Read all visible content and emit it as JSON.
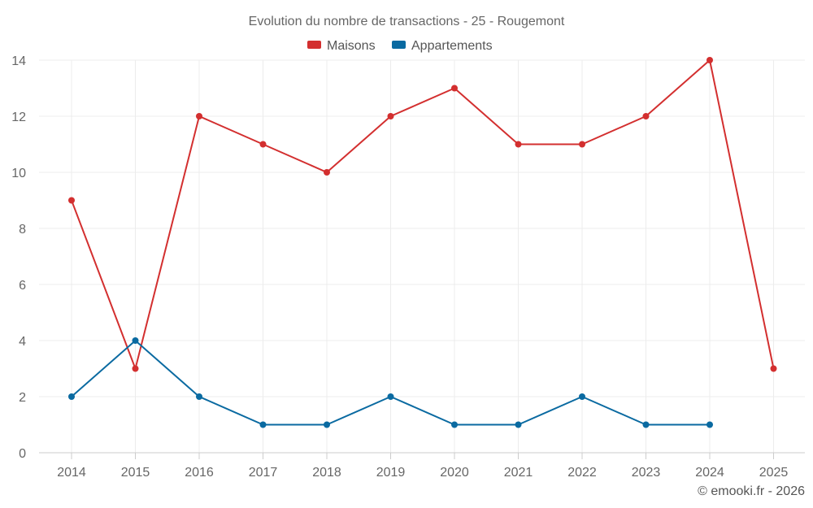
{
  "chart_data": {
    "type": "line",
    "title": "Evolution du nombre de transactions - 25 - Rougemont",
    "categories": [
      "2014",
      "2015",
      "2016",
      "2017",
      "2018",
      "2019",
      "2020",
      "2021",
      "2022",
      "2023",
      "2024",
      "2025"
    ],
    "ylim": [
      0,
      14
    ],
    "yticks": [
      0,
      2,
      4,
      6,
      8,
      10,
      12,
      14
    ],
    "grid": true,
    "legend_position": "top-center",
    "series": [
      {
        "name": "Maisons",
        "color": "#d32f2f",
        "values": [
          9,
          3,
          12,
          11,
          10,
          12,
          13,
          11,
          11,
          12,
          14,
          3
        ]
      },
      {
        "name": "Appartements",
        "color": "#0a6aa1",
        "values": [
          2,
          4,
          2,
          1,
          1,
          2,
          1,
          1,
          2,
          1,
          1,
          null
        ]
      }
    ]
  },
  "credit": "© emooki.fr - 2026"
}
